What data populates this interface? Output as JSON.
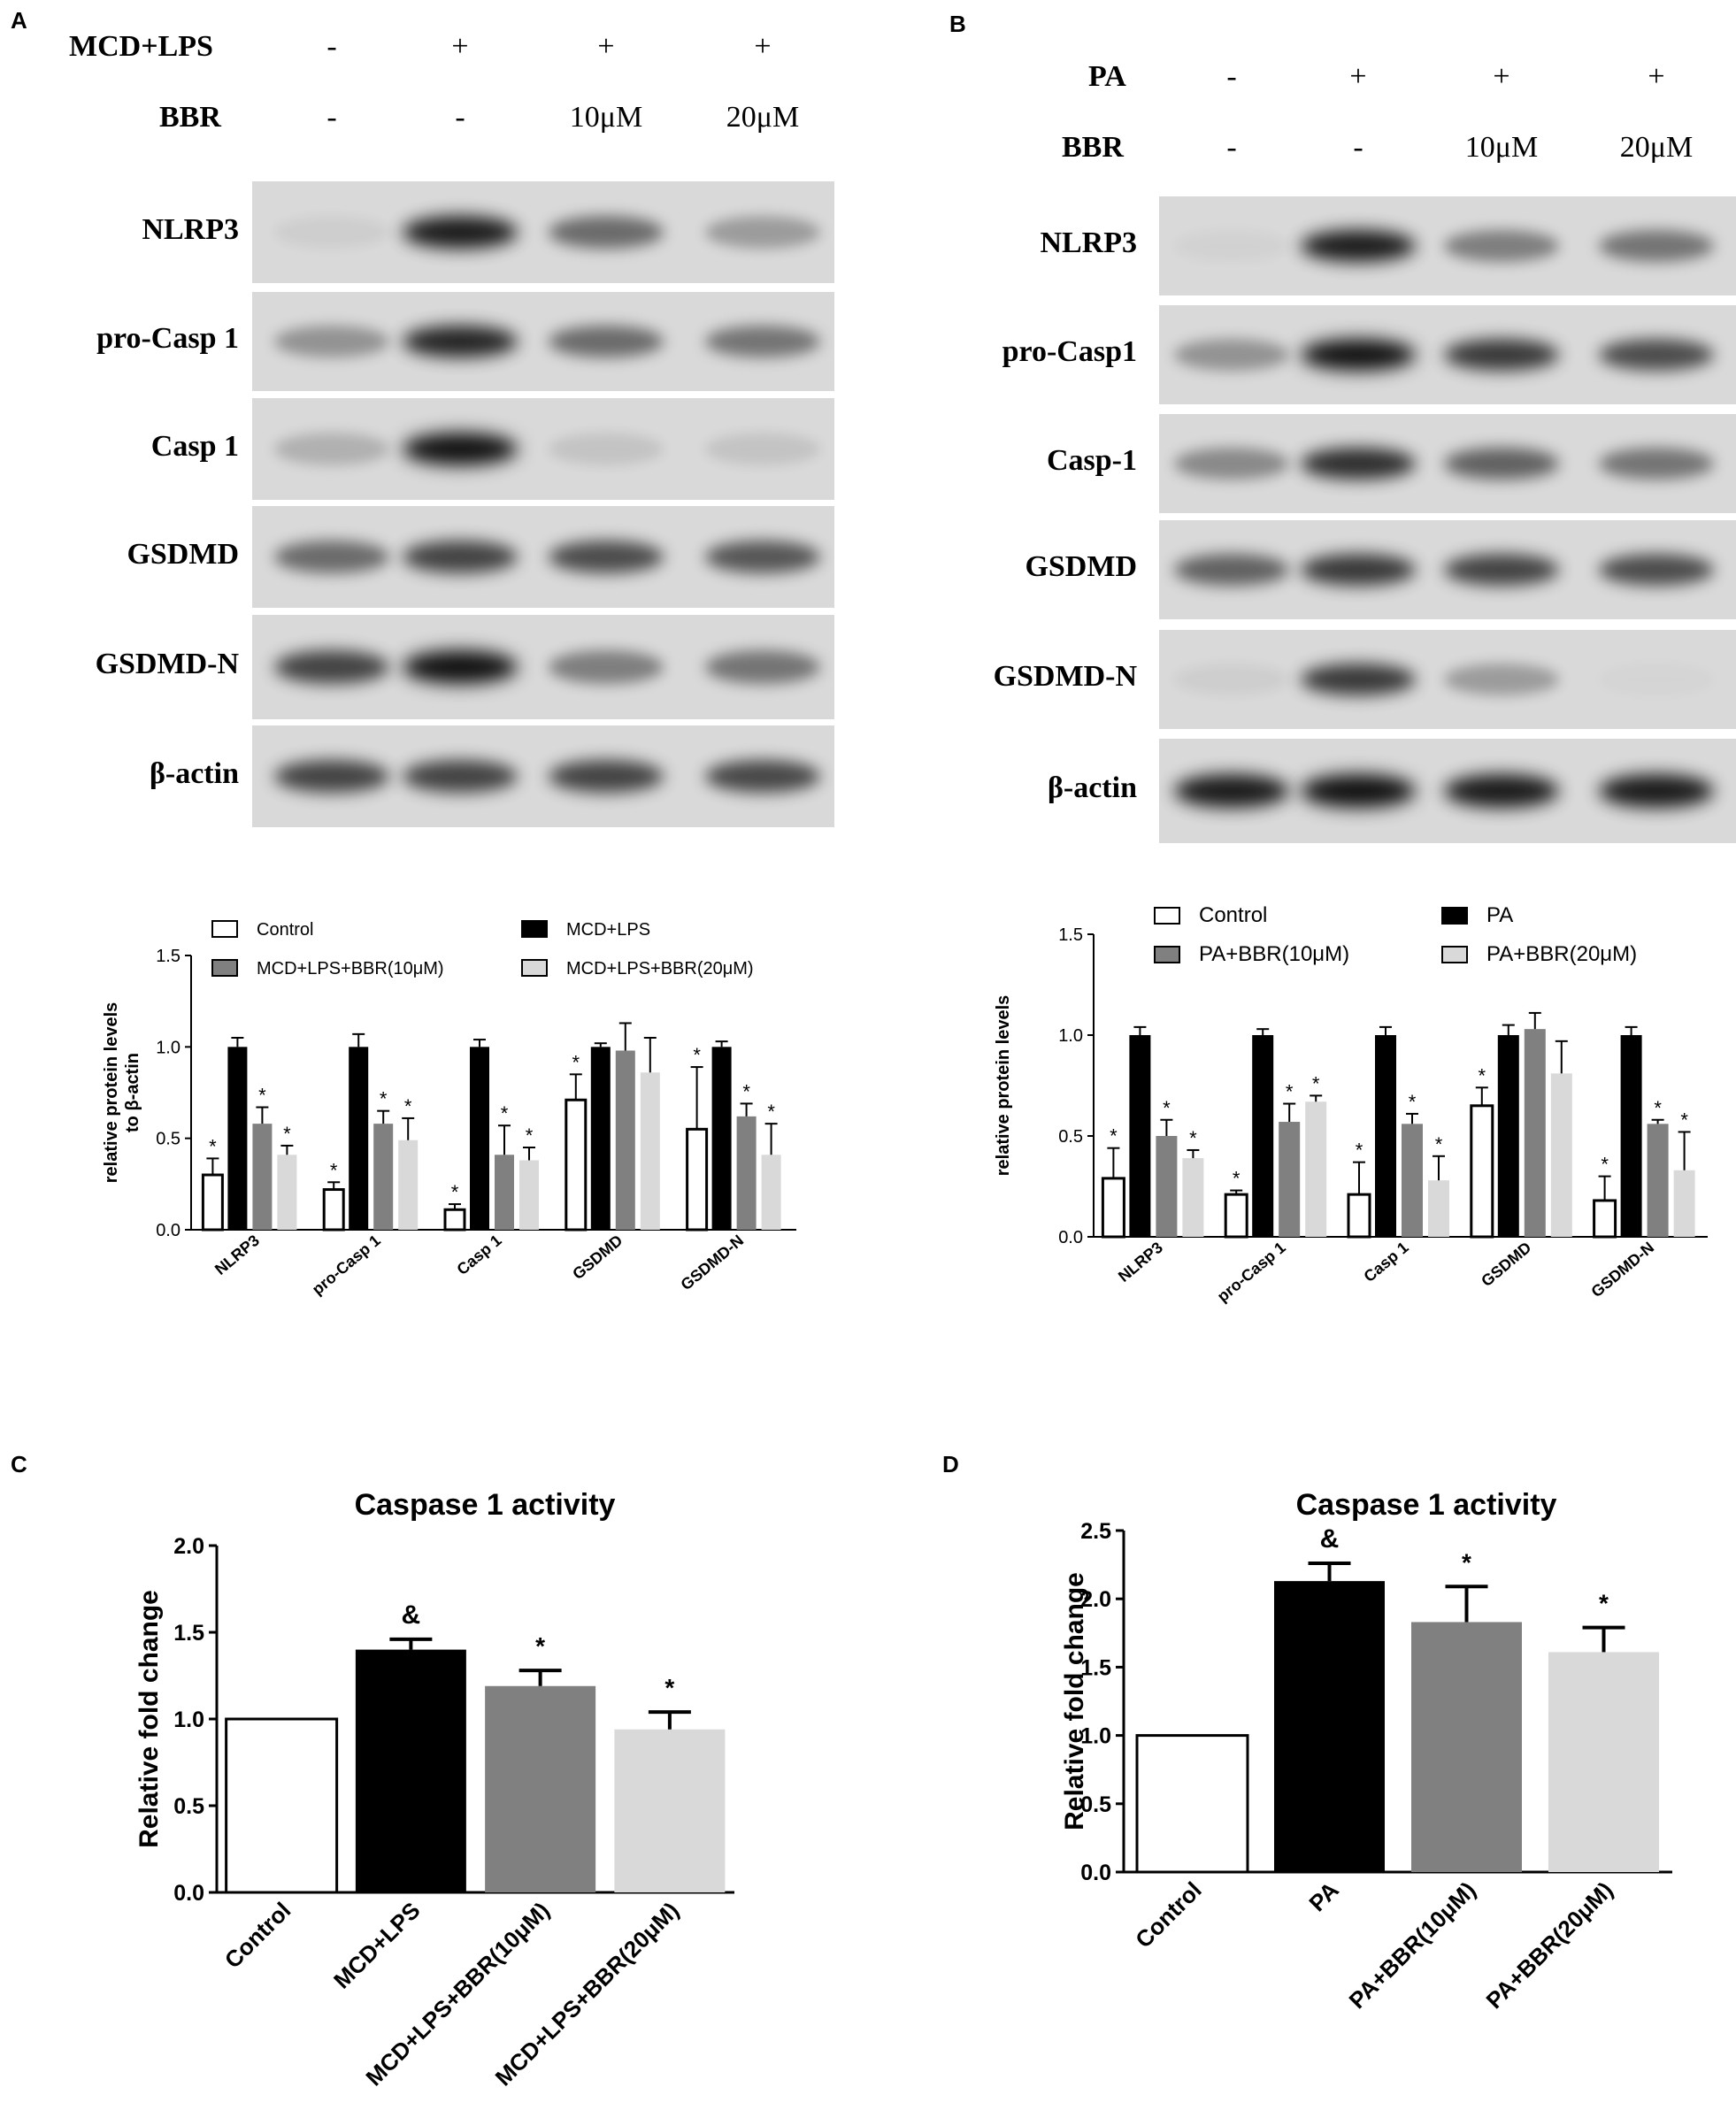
{
  "panels": [
    {
      "letter": "A",
      "conditions": [
        {
          "label": "MCD+LPS",
          "values": [
            "-",
            "+",
            "+",
            "+"
          ]
        },
        {
          "label": "BBR",
          "values": [
            "-",
            "-",
            "10μM",
            "20μM"
          ]
        }
      ],
      "blots": [
        {
          "label": "NLRP3",
          "intensity": [
            0.05,
            0.95,
            0.55,
            0.3
          ]
        },
        {
          "label": "pro-Casp 1",
          "intensity": [
            0.35,
            0.9,
            0.55,
            0.5
          ]
        },
        {
          "label": "Casp 1",
          "intensity": [
            0.2,
            1.0,
            0.1,
            0.1
          ]
        },
        {
          "label": "GSDMD",
          "intensity": [
            0.55,
            0.75,
            0.7,
            0.65
          ]
        },
        {
          "label": "GSDMD-N",
          "intensity": [
            0.75,
            1.0,
            0.45,
            0.5
          ]
        },
        {
          "label": "β-actin",
          "intensity": [
            0.75,
            0.75,
            0.75,
            0.72
          ]
        }
      ]
    },
    {
      "letter": "B",
      "conditions": [
        {
          "label": "PA",
          "values": [
            "-",
            "+",
            "+",
            "+"
          ]
        },
        {
          "label": "BBR",
          "values": [
            "-",
            "-",
            "10μM",
            "20μM"
          ]
        }
      ],
      "blots": [
        {
          "label": "NLRP3",
          "intensity": [
            0.03,
            0.95,
            0.45,
            0.5
          ]
        },
        {
          "label": "pro-Casp1",
          "intensity": [
            0.35,
            1.0,
            0.8,
            0.7
          ]
        },
        {
          "label": "Casp-1",
          "intensity": [
            0.4,
            0.85,
            0.6,
            0.5
          ]
        },
        {
          "label": "GSDMD",
          "intensity": [
            0.6,
            0.8,
            0.75,
            0.7
          ]
        },
        {
          "label": "GSDMD-N",
          "intensity": [
            0.05,
            0.8,
            0.3,
            0.02
          ]
        },
        {
          "label": "β-actin",
          "intensity": [
            0.95,
            1.0,
            0.95,
            0.95
          ]
        }
      ]
    },
    {
      "letter": "C"
    },
    {
      "letter": "D"
    }
  ],
  "chart_data": [
    {
      "type": "bar",
      "panel": "A",
      "title": "",
      "ylabel_lines": [
        "relative protein levels",
        "to β-actin"
      ],
      "ylim": [
        0,
        1.5
      ],
      "yticks": [
        "0.0",
        "0.5",
        "1.0",
        "1.5"
      ],
      "categories": [
        "NLRP3",
        "pro-Casp 1",
        "Casp 1",
        "GSDMD",
        "GSDMD-N"
      ],
      "series": [
        {
          "name": "Control",
          "color": "#ffffff",
          "values": [
            0.3,
            0.22,
            0.11,
            0.71,
            0.55
          ],
          "errors": [
            0.09,
            0.04,
            0.03,
            0.14,
            0.34
          ],
          "stars": [
            true,
            true,
            true,
            true,
            true
          ]
        },
        {
          "name": "MCD+LPS",
          "color": "#000000",
          "values": [
            1.0,
            1.0,
            1.0,
            1.0,
            1.0
          ],
          "errors": [
            0.05,
            0.07,
            0.04,
            0.02,
            0.03
          ],
          "stars": [
            false,
            false,
            false,
            false,
            false
          ]
        },
        {
          "name": "MCD+LPS+BBR(10μM)",
          "color": "#808080",
          "values": [
            0.58,
            0.58,
            0.41,
            0.98,
            0.62
          ],
          "errors": [
            0.09,
            0.07,
            0.16,
            0.15,
            0.07
          ],
          "stars": [
            true,
            true,
            true,
            false,
            true
          ]
        },
        {
          "name": "MCD+LPS+BBR(20μM)",
          "color": "#d9d9d9",
          "values": [
            0.41,
            0.49,
            0.38,
            0.86,
            0.41
          ],
          "errors": [
            0.05,
            0.12,
            0.07,
            0.19,
            0.17
          ],
          "stars": [
            true,
            true,
            true,
            false,
            true
          ]
        }
      ],
      "legend_placement": "top"
    },
    {
      "type": "bar",
      "panel": "B",
      "title": "",
      "ylabel_lines": [
        "relative protein levels"
      ],
      "ylim": [
        0,
        1.5
      ],
      "yticks": [
        "0.0",
        "0.5",
        "1.0",
        "1.5"
      ],
      "categories": [
        "NLRP3",
        "pro-Casp 1",
        "Casp 1",
        "GSDMD",
        "GSDMD-N"
      ],
      "series": [
        {
          "name": "Control",
          "color": "#ffffff",
          "values": [
            0.29,
            0.21,
            0.21,
            0.65,
            0.18
          ],
          "errors": [
            0.15,
            0.02,
            0.16,
            0.09,
            0.12
          ],
          "stars": [
            true,
            true,
            true,
            true,
            true
          ]
        },
        {
          "name": "PA",
          "color": "#000000",
          "values": [
            1.0,
            1.0,
            1.0,
            1.0,
            1.0
          ],
          "errors": [
            0.04,
            0.03,
            0.04,
            0.05,
            0.04
          ],
          "stars": [
            false,
            false,
            false,
            false,
            false
          ]
        },
        {
          "name": "PA+BBR(10μM)",
          "color": "#808080",
          "values": [
            0.5,
            0.57,
            0.56,
            1.03,
            0.56
          ],
          "errors": [
            0.08,
            0.09,
            0.05,
            0.08,
            0.02
          ],
          "stars": [
            true,
            true,
            true,
            false,
            true
          ]
        },
        {
          "name": "PA+BBR(20μM)",
          "color": "#d9d9d9",
          "values": [
            0.39,
            0.67,
            0.28,
            0.81,
            0.33
          ],
          "errors": [
            0.04,
            0.03,
            0.12,
            0.16,
            0.19
          ],
          "stars": [
            true,
            true,
            true,
            false,
            true
          ]
        }
      ],
      "legend_placement": "top"
    },
    {
      "type": "bar",
      "panel": "C",
      "title": "Caspase 1 activity",
      "ylabel": "Relative fold change",
      "ylim": [
        0,
        2.0
      ],
      "yticks": [
        "0.0",
        "0.5",
        "1.0",
        "1.5",
        "2.0"
      ],
      "categories": [
        "Control",
        "MCD+LPS",
        "MCD+LPS+BBR(10μM)",
        "MCD+LPS+BBR(20μM)"
      ],
      "values": [
        1.0,
        1.4,
        1.19,
        0.94
      ],
      "errors": [
        0,
        0.06,
        0.09,
        0.1
      ],
      "colors": [
        "#ffffff",
        "#000000",
        "#808080",
        "#d9d9d9"
      ],
      "marks": [
        "",
        "&",
        "*",
        "*"
      ]
    },
    {
      "type": "bar",
      "panel": "D",
      "title": "Caspase 1 activity",
      "ylabel": "Relative fold change",
      "ylim": [
        0,
        2.5
      ],
      "yticks": [
        "0.0",
        "0.5",
        "1.0",
        "1.5",
        "2.0",
        "2.5"
      ],
      "categories": [
        "Control",
        "PA",
        "PA+BBR(10μM)",
        "PA+BBR(20μM)"
      ],
      "values": [
        1.0,
        2.13,
        1.83,
        1.61
      ],
      "errors": [
        0,
        0.13,
        0.26,
        0.18
      ],
      "colors": [
        "#ffffff",
        "#000000",
        "#808080",
        "#d9d9d9"
      ],
      "marks": [
        "",
        "&",
        "*",
        "*"
      ]
    }
  ]
}
